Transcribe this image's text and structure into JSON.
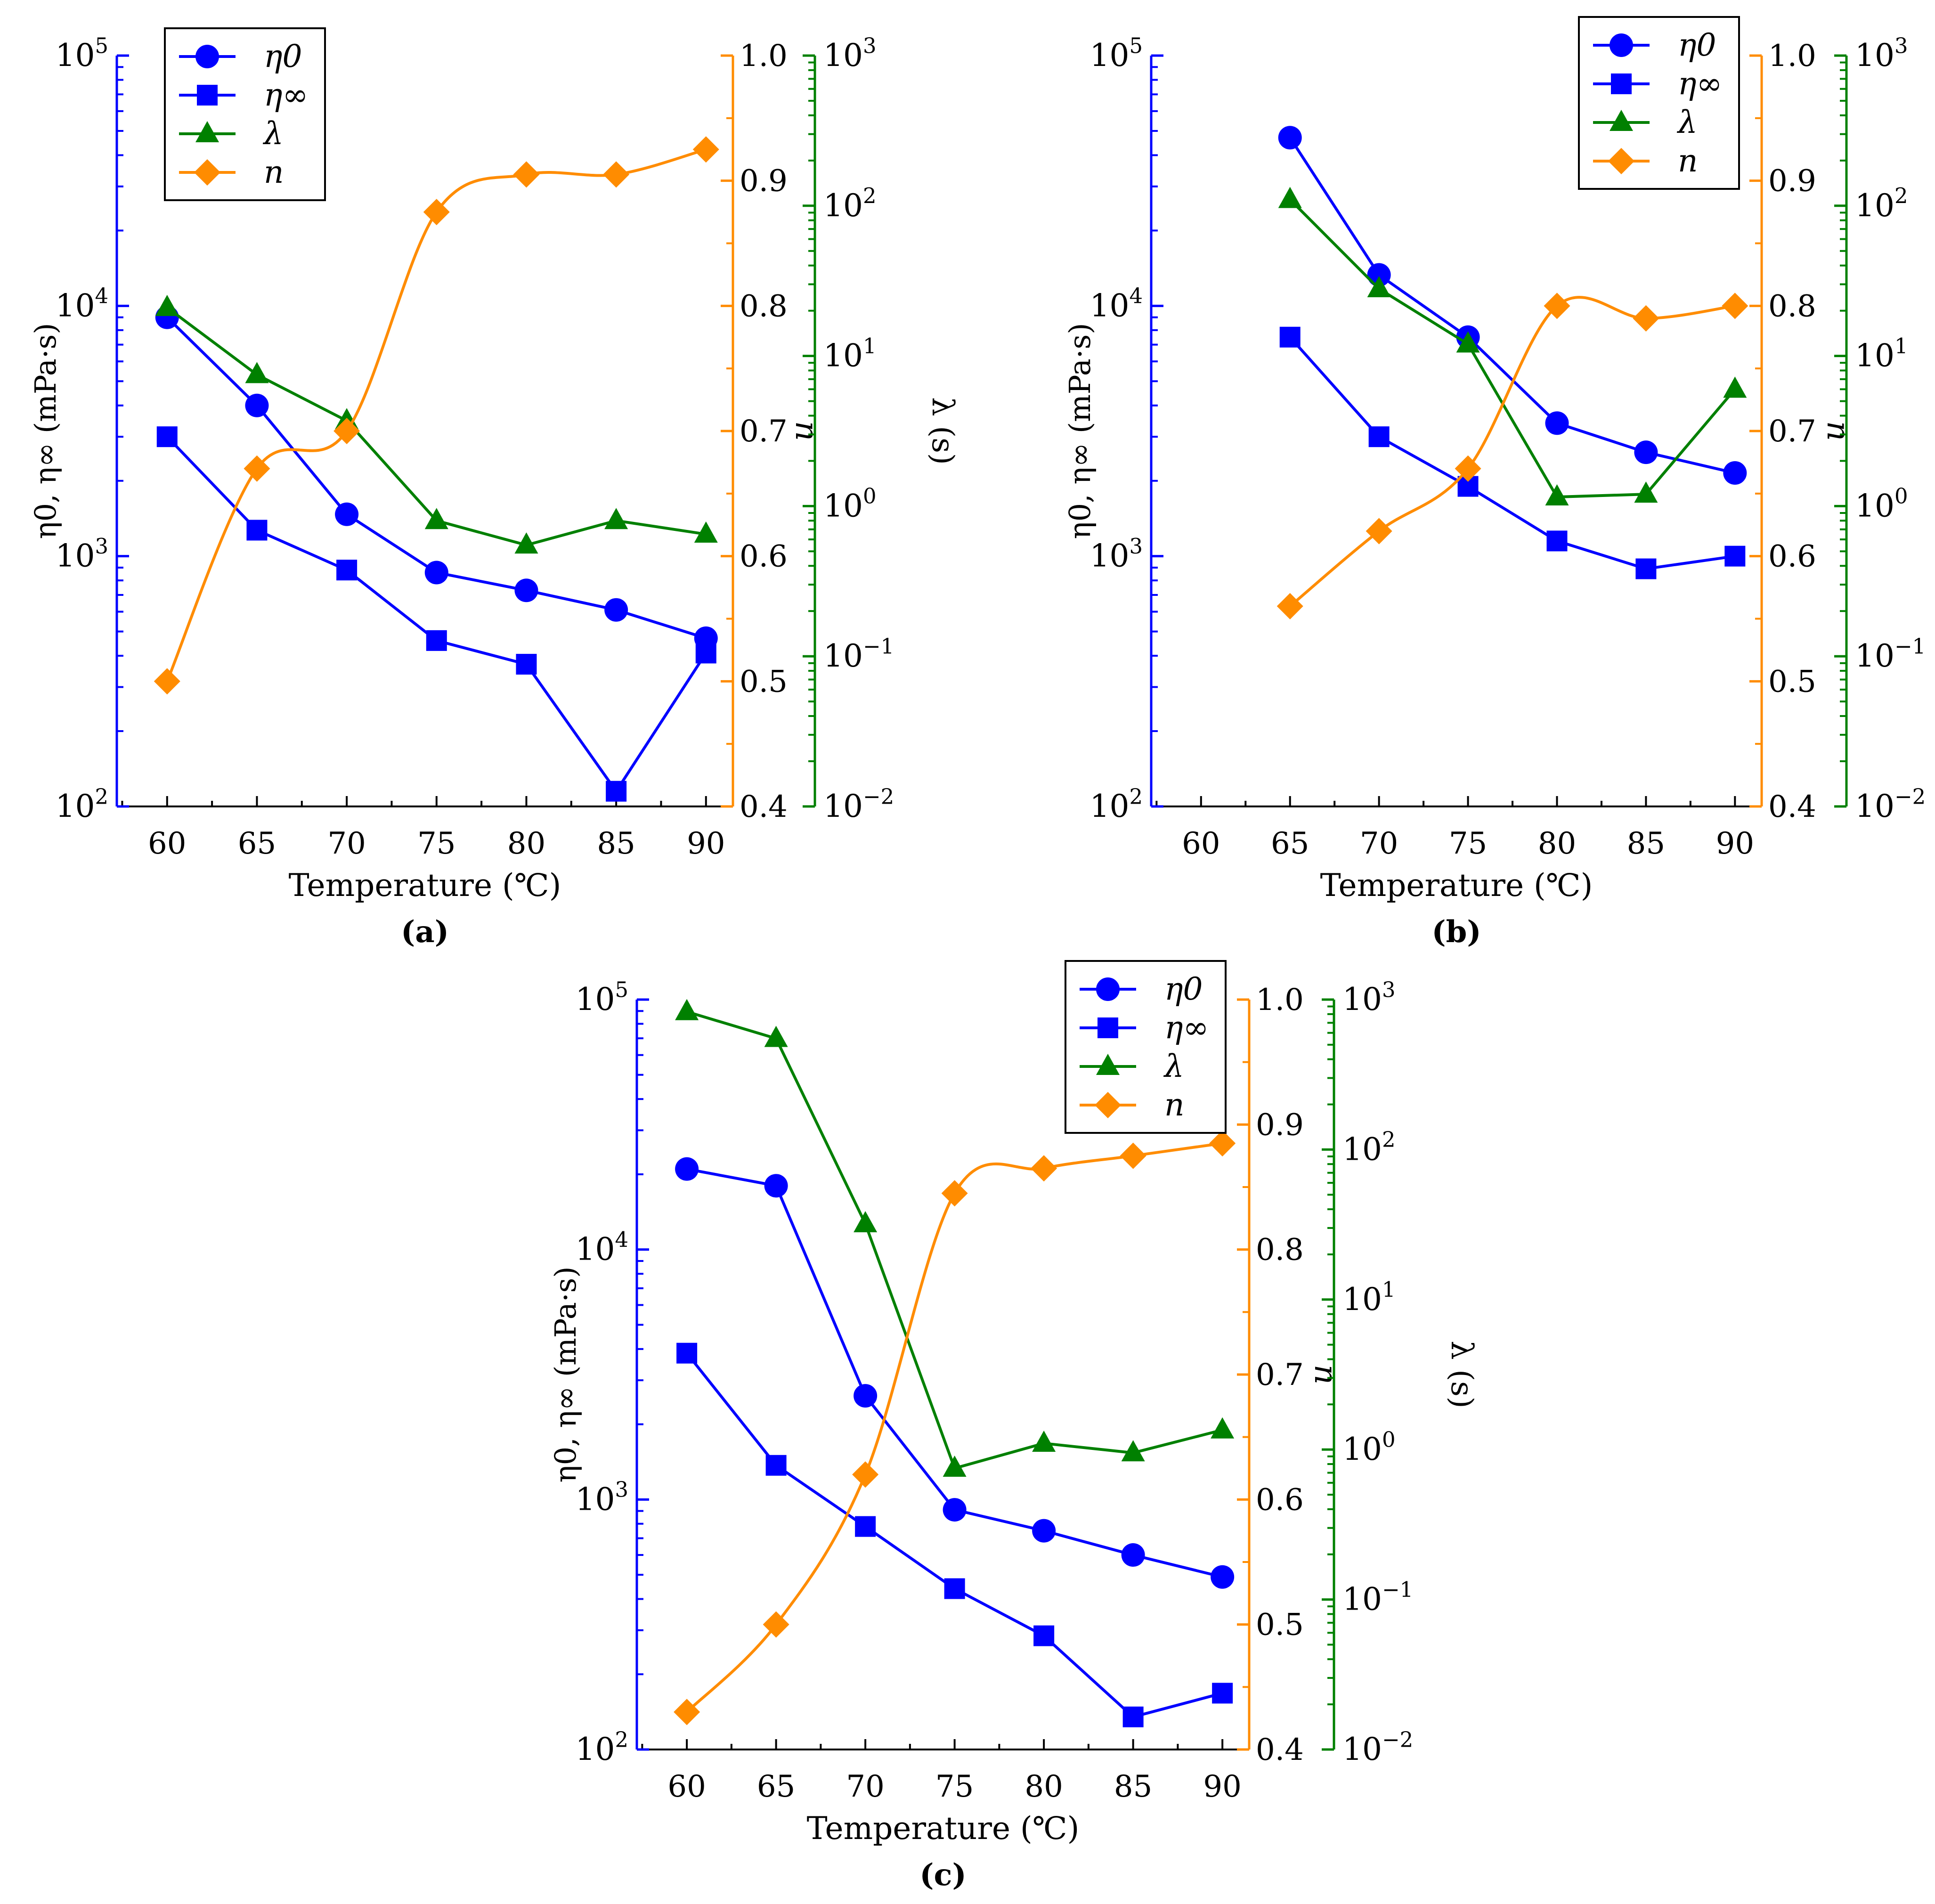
{
  "figure": {
    "colors": {
      "eta0": "#0000ff",
      "etainf": "#0000ff",
      "lambda": "#008000",
      "n": "#ff8c00",
      "frame": "#000000"
    },
    "markers": {
      "eta0": "circle",
      "etainf": "square",
      "lambda": "triangle",
      "n": "diamond"
    },
    "legend_labels": [
      "η0",
      "η∞",
      "λ",
      "n"
    ]
  },
  "chart_data": [
    {
      "panel": "a",
      "caption": "(a)",
      "type": "line",
      "x": [
        60,
        65,
        70,
        75,
        80,
        85,
        90
      ],
      "xlabel": "Temperature (℃)",
      "xticks": [
        "60",
        "65",
        "70",
        "75",
        "80",
        "85",
        "90"
      ],
      "xlim": [
        57.2,
        91.5
      ],
      "ylabel_left": "η0, η∞ (mPa·s)",
      "ylim_left_log10": [
        2,
        5
      ],
      "ylabel_n": "n",
      "ylim_n": [
        0.4,
        1.0
      ],
      "yticks_n": [
        "0.4",
        "0.5",
        "0.6",
        "0.7",
        "0.8",
        "0.9",
        "1.0"
      ],
      "ylabel_lambda": "λ (s)",
      "ylim_lambda_log10": [
        -2,
        3
      ],
      "legend_position": "top-left",
      "series": [
        {
          "key": "eta0",
          "name": "η0",
          "axis": "left",
          "values": [
            9000,
            4000,
            1470,
            860,
            730,
            610,
            470
          ]
        },
        {
          "key": "etainf",
          "name": "η∞",
          "axis": "left",
          "values": [
            3000,
            1270,
            880,
            460,
            370,
            115,
            410
          ]
        },
        {
          "key": "lambda",
          "name": "λ",
          "axis": "lambda",
          "values": [
            21,
            7.5,
            3.7,
            0.8,
            0.55,
            0.8,
            0.65
          ]
        },
        {
          "key": "n",
          "name": "n",
          "axis": "n",
          "values": [
            0.5,
            0.67,
            0.7,
            0.875,
            0.905,
            0.905,
            0.925
          ]
        }
      ]
    },
    {
      "panel": "b",
      "caption": "(b)",
      "type": "line",
      "x": [
        65,
        70,
        75,
        80,
        85,
        90
      ],
      "xlabel": "Temperature (℃)",
      "xticks": [
        "60",
        "65",
        "70",
        "75",
        "80",
        "85",
        "90"
      ],
      "xlim": [
        57.2,
        91.5
      ],
      "ylabel_left": "η0, η∞ (mPa·s)",
      "ylim_left_log10": [
        2,
        5
      ],
      "ylabel_n": "n",
      "ylim_n": [
        0.4,
        1.0
      ],
      "yticks_n": [
        "0.4",
        "0.5",
        "0.6",
        "0.7",
        "0.8",
        "0.9",
        "1.0"
      ],
      "ylabel_lambda": "λ (s)",
      "ylim_lambda_log10": [
        -2,
        3
      ],
      "legend_position": "top-right",
      "series": [
        {
          "key": "eta0",
          "name": "η0",
          "axis": "left",
          "values": [
            47000,
            13300,
            7500,
            3400,
            2600,
            2150
          ]
        },
        {
          "key": "etainf",
          "name": "η∞",
          "axis": "left",
          "values": [
            7500,
            3000,
            1900,
            1150,
            890,
            1000
          ]
        },
        {
          "key": "lambda",
          "name": "λ",
          "axis": "lambda",
          "values": [
            110,
            28,
            12,
            1.15,
            1.2,
            6
          ]
        },
        {
          "key": "n",
          "name": "n",
          "axis": "n",
          "values": [
            0.56,
            0.62,
            0.67,
            0.8,
            0.79,
            0.8
          ]
        }
      ]
    },
    {
      "panel": "c",
      "caption": "(c)",
      "type": "line",
      "x": [
        60,
        65,
        70,
        75,
        80,
        85,
        90
      ],
      "xlabel": "Temperature (℃)",
      "xticks": [
        "60",
        "65",
        "70",
        "75",
        "80",
        "85",
        "90"
      ],
      "xlim": [
        57.2,
        91.5
      ],
      "ylabel_left": "η0, η∞ (mPa·s)",
      "ylim_left_log10": [
        2,
        5
      ],
      "ylabel_n": "n",
      "ylim_n": [
        0.4,
        1.0
      ],
      "yticks_n": [
        "0.4",
        "0.5",
        "0.6",
        "0.7",
        "0.8",
        "0.9",
        "1.0"
      ],
      "ylabel_lambda": "λ (s)",
      "ylim_lambda_log10": [
        -2,
        3
      ],
      "legend_position": "top-right",
      "series": [
        {
          "key": "eta0",
          "name": "η0",
          "axis": "left",
          "values": [
            21000,
            18000,
            2600,
            910,
            750,
            600,
            490
          ]
        },
        {
          "key": "etainf",
          "name": "η∞",
          "axis": "left",
          "values": [
            3850,
            1370,
            780,
            440,
            285,
            135,
            168
          ]
        },
        {
          "key": "lambda",
          "name": "λ",
          "axis": "lambda",
          "values": [
            830,
            550,
            32,
            0.75,
            1.1,
            0.95,
            1.35
          ]
        },
        {
          "key": "n",
          "name": "n",
          "axis": "n",
          "values": [
            0.43,
            0.5,
            0.62,
            0.845,
            0.865,
            0.875,
            0.885
          ]
        }
      ]
    }
  ]
}
